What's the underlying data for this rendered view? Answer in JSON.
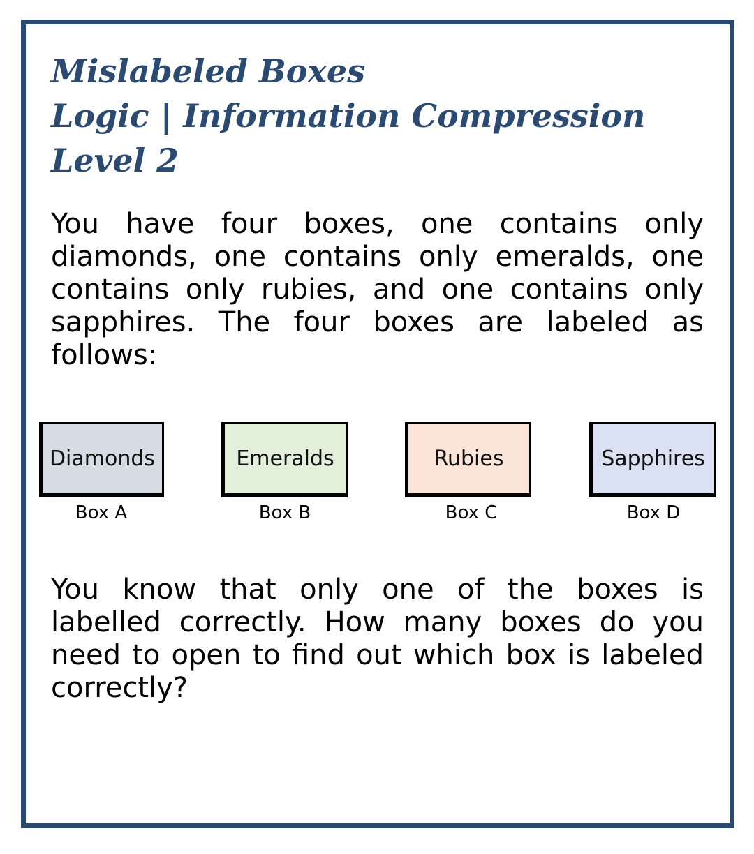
{
  "title": {
    "line1": "Mislabeled Boxes",
    "line2": "Logic | Information Compression",
    "line3": "Level 2"
  },
  "intro": "You have four boxes, one contains only diamonds, one contains only emeralds, one contains only rubies, and one contains only sapphires. The four boxes are labeled as follows:",
  "boxes": [
    {
      "label": "Diamonds",
      "name": "Box A",
      "color": "#d6dce4"
    },
    {
      "label": "Emeralds",
      "name": "Box B",
      "color": "#e2efda"
    },
    {
      "label": "Rubies",
      "name": "Box C",
      "color": "#fce4d6"
    },
    {
      "label": "Sapphires",
      "name": "Box D",
      "color": "#d9e1f2"
    }
  ],
  "question": "You know that only one of the boxes is labelled correctly. How many boxes do you need to open to find out which box is labeled correctly?",
  "colors": {
    "frame": "#2b4a72",
    "title": "#2b4a72"
  }
}
